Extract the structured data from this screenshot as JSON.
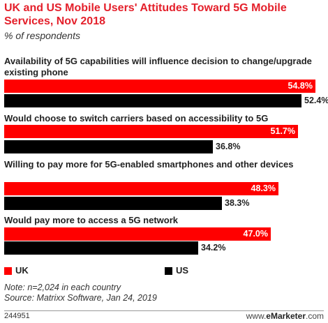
{
  "chart_data": {
    "type": "bar",
    "title": "UK and US Mobile Users' Attitudes Toward 5G Mobile Services, Nov 2018",
    "subtitle": "% of respondents",
    "categories": [
      "Availability of 5G capabilities will influence decision to change/upgrade existing phone",
      "Would choose to switch carriers based on accessibility to 5G",
      "Willing to pay more for 5G-enabled smartphones and other devices",
      "Would pay more to access a 5G network"
    ],
    "series": [
      {
        "name": "UK",
        "values": [
          54.8,
          51.7,
          48.3,
          47.0
        ],
        "labels": [
          "54.8%",
          "51.7%",
          "48.3%",
          "47.0%"
        ],
        "color": "#ff0000"
      },
      {
        "name": "US",
        "values": [
          52.4,
          36.8,
          38.3,
          34.2
        ],
        "labels": [
          "52.4%",
          "36.8%",
          "38.3%",
          "34.2%"
        ],
        "color": "#000000"
      }
    ],
    "xlim": [
      0,
      56.3
    ],
    "grid": false,
    "legend": "bottom-left"
  },
  "notes": {
    "note": "Note: n=2,024 in each country",
    "source": "Source: Matrixx Software, Jan 24, 2019"
  },
  "footer": {
    "id": "244951",
    "brand_prefix": "www.",
    "brand_name": "eMarketer",
    "brand_suffix": ".com"
  }
}
